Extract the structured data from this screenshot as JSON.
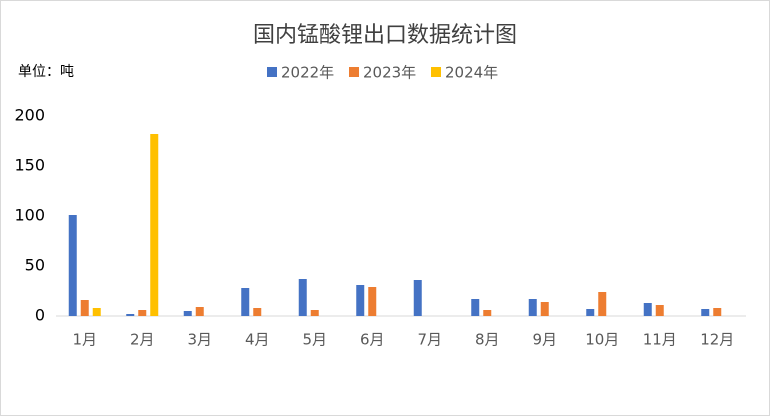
{
  "chart_data": {
    "type": "bar",
    "title": "国内锰酸锂出口数据统计图",
    "y_label": "单位：吨",
    "categories": [
      "1月",
      "2月",
      "3月",
      "4月",
      "5月",
      "6月",
      "7月",
      "8月",
      "9月",
      "10月",
      "11月",
      "12月"
    ],
    "series": [
      {
        "name": "2022年",
        "color": "#4472c4",
        "values": [
          101,
          2,
          5,
          28,
          37,
          31,
          36,
          17,
          17,
          7,
          13,
          7
        ]
      },
      {
        "name": "2023年",
        "color": "#ed7d31",
        "values": [
          16,
          6,
          9,
          8,
          6,
          29,
          null,
          6,
          14,
          24,
          11,
          8
        ]
      },
      {
        "name": "2024年",
        "color": "#ffc000",
        "values": [
          8,
          182,
          null,
          null,
          null,
          null,
          null,
          null,
          null,
          null,
          null,
          null
        ]
      }
    ],
    "ylim": [
      0,
      200
    ],
    "yticks": [
      0,
      50,
      100,
      150,
      200
    ],
    "grid": false
  }
}
